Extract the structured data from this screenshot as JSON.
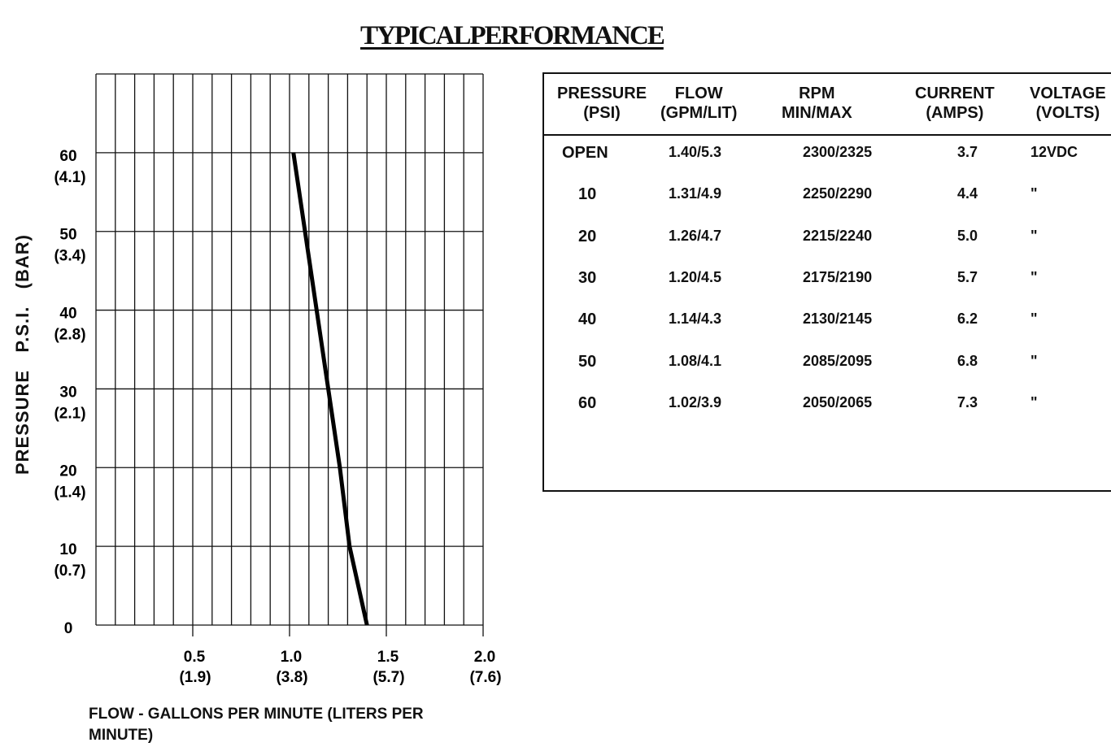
{
  "title": "TYPICALPERFORMANCE",
  "chart_data": {
    "type": "line",
    "x_axis": {
      "label": "FLOW - GALLONS PER MINUTE (LITERS PER MINUTE)",
      "range": [
        0,
        2.0
      ],
      "ticks": [
        {
          "value": 0.5,
          "label": "0.5",
          "sublabel": "(1.9)"
        },
        {
          "value": 1.0,
          "label": "1.0",
          "sublabel": "(3.8)"
        },
        {
          "value": 1.5,
          "label": "1.5",
          "sublabel": "(5.7)"
        },
        {
          "value": 2.0,
          "label": "2.0",
          "sublabel": "(7.6)"
        }
      ]
    },
    "y_axis": {
      "label_parts": [
        "PRESSURE",
        "P.S.I.",
        "(BAR)"
      ],
      "range": [
        0,
        70
      ],
      "ticks": [
        {
          "value": 0,
          "label": "0",
          "sublabel": ""
        },
        {
          "value": 10,
          "label": "10",
          "sublabel": "(0.7)"
        },
        {
          "value": 20,
          "label": "20",
          "sublabel": "(1.4)"
        },
        {
          "value": 30,
          "label": "30",
          "sublabel": "(2.1)"
        },
        {
          "value": 40,
          "label": "40",
          "sublabel": "(2.8)"
        },
        {
          "value": 50,
          "label": "50",
          "sublabel": "(3.4)"
        },
        {
          "value": 60,
          "label": "60",
          "sublabel": "(4.1)"
        }
      ]
    },
    "grid": true,
    "x_grid_step": 0.1,
    "y_grid_step": 10,
    "series": [
      {
        "x": [
          1.4,
          1.31,
          1.26,
          1.2,
          1.14,
          1.08,
          1.02
        ],
        "y": [
          0,
          10,
          20,
          30,
          40,
          50,
          60
        ],
        "color": "#000000"
      }
    ]
  },
  "table": {
    "headers": [
      {
        "l1": "PRESSURE",
        "l2": "(PSI)"
      },
      {
        "l1": "FLOW",
        "l2": "(GPM/LIT)"
      },
      {
        "l1": "RPM",
        "l2": "MIN/MAX"
      },
      {
        "l1": "CURRENT",
        "l2": "(AMPS)"
      },
      {
        "l1": "VOLTAGE",
        "l2": "(VOLTS)"
      }
    ],
    "rows": [
      [
        "OPEN",
        "1.40/5.3",
        "2300/2325",
        "3.7",
        "12VDC"
      ],
      [
        "10",
        "1.31/4.9",
        "2250/2290",
        "4.4",
        "\""
      ],
      [
        "20",
        "1.26/4.7",
        "2215/2240",
        "5.0",
        "\""
      ],
      [
        "30",
        "1.20/4.5",
        "2175/2190",
        "5.7",
        "\""
      ],
      [
        "40",
        "1.14/4.3",
        "2130/2145",
        "6.2",
        "\""
      ],
      [
        "50",
        "1.08/4.1",
        "2085/2095",
        "6.8",
        "\""
      ],
      [
        "60",
        "1.02/3.9",
        "2050/2065",
        "7.3",
        "\""
      ]
    ]
  }
}
